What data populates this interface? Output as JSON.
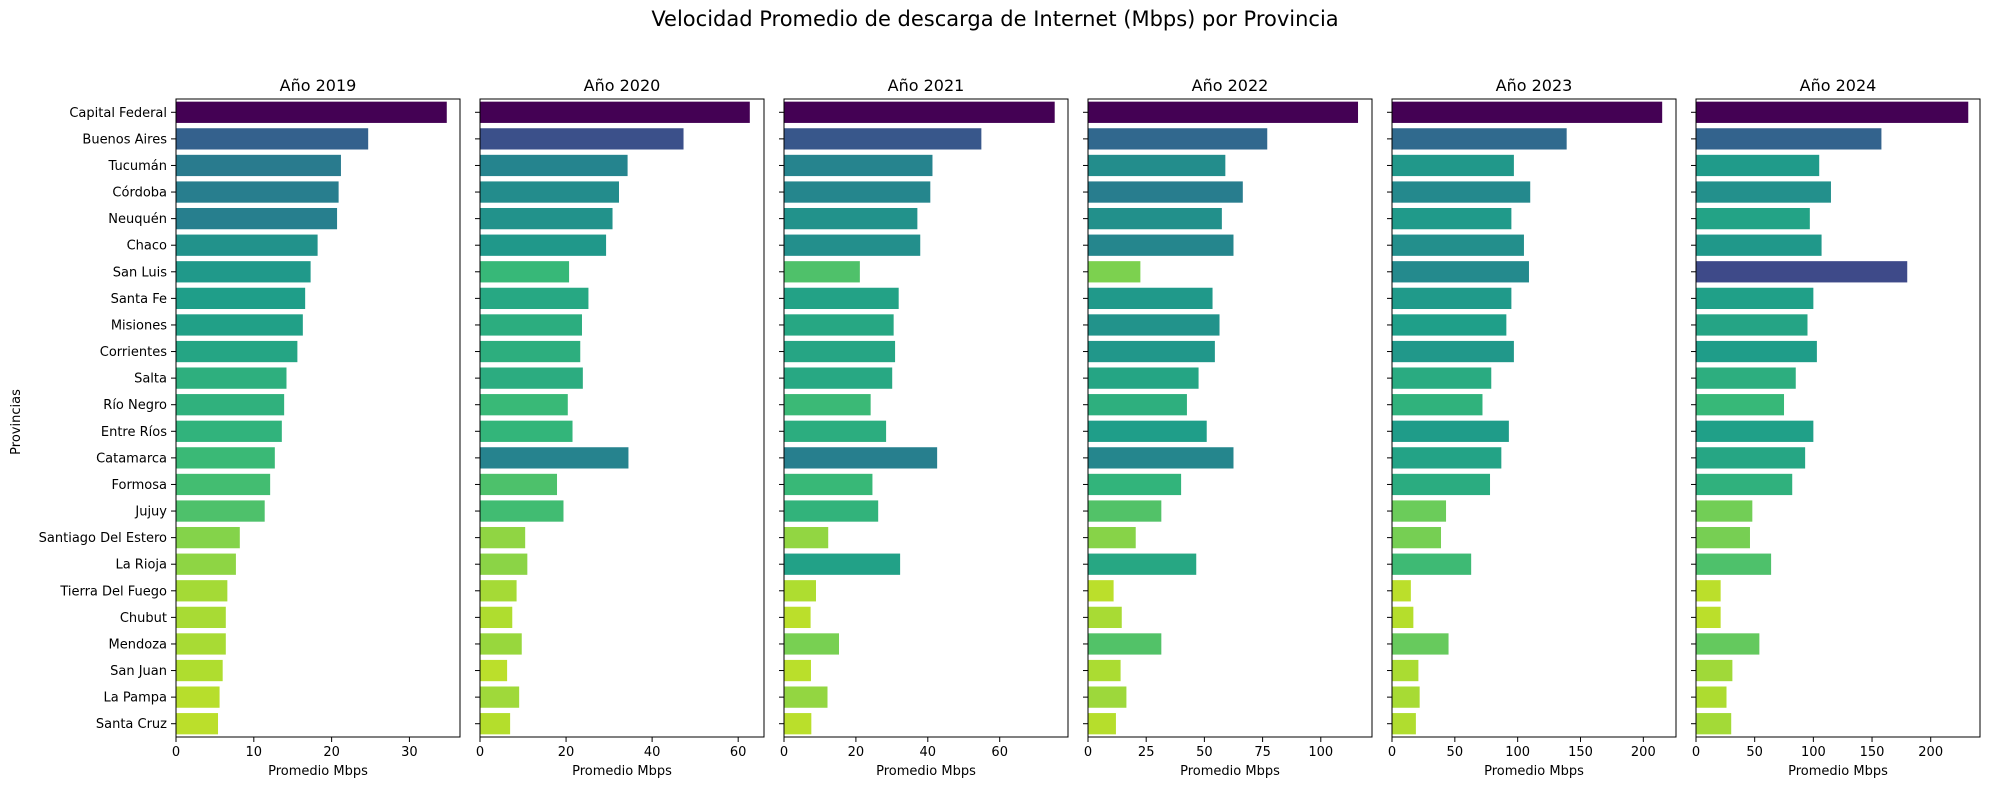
{
  "chart_data": {
    "type": "bar",
    "orientation": "horizontal",
    "title": "Velocidad Promedio de descarga de Internet (Mbps) por Provincia",
    "ylabel": "Provincias",
    "xlabel": "Promedio Mbps",
    "categories": [
      "Capital Federal",
      "Buenos Aires",
      "Tucumán",
      "Córdoba",
      "Neuquén",
      "Chaco",
      "San Luis",
      "Santa Fe",
      "Misiones",
      "Corrientes",
      "Salta",
      "Río Negro",
      "Entre Ríos",
      "Catamarca",
      "Formosa",
      "Jujuy",
      "Santiago Del Estero",
      "La Rioja",
      "Tierra Del Fuego",
      "Chubut",
      "Mendoza",
      "San Juan",
      "La Pampa",
      "Santa Cruz"
    ],
    "colormap": "viridis",
    "panels": [
      {
        "title": "Año 2019",
        "xlim": [
          0,
          36.5
        ],
        "xticks": [
          0,
          10,
          20,
          30
        ],
        "values": [
          34.8,
          24.7,
          21.2,
          20.9,
          20.7,
          18.2,
          17.3,
          16.6,
          16.3,
          15.6,
          14.2,
          13.9,
          13.6,
          12.7,
          12.1,
          11.4,
          8.2,
          7.7,
          6.6,
          6.4,
          6.4,
          6.0,
          5.6,
          5.4
        ]
      },
      {
        "title": "Año 2020",
        "xlim": [
          0,
          66
        ],
        "xticks": [
          0,
          20,
          40,
          60
        ],
        "values": [
          62.7,
          47.3,
          34.3,
          32.3,
          30.8,
          29.3,
          20.7,
          25.2,
          23.7,
          23.3,
          23.9,
          20.4,
          21.5,
          34.5,
          17.9,
          19.4,
          10.5,
          11.0,
          8.5,
          7.5,
          9.7,
          6.3,
          9.1,
          7.0
        ]
      },
      {
        "title": "Año 2021",
        "xlim": [
          0,
          79
        ],
        "xticks": [
          0,
          20,
          40,
          60
        ],
        "values": [
          75.3,
          54.9,
          41.3,
          40.7,
          37.1,
          37.9,
          21.1,
          31.9,
          30.5,
          30.9,
          30.1,
          24.1,
          28.4,
          42.6,
          24.6,
          26.2,
          12.3,
          32.3,
          8.9,
          7.4,
          15.3,
          7.5,
          12.1,
          7.6
        ]
      },
      {
        "title": "Año 2022",
        "xlim": [
          0,
          122
        ],
        "xticks": [
          0,
          25,
          50,
          75,
          100
        ],
        "values": [
          116.0,
          77.0,
          59.0,
          66.5,
          57.5,
          62.5,
          22.5,
          53.5,
          56.5,
          54.5,
          47.5,
          42.5,
          51.0,
          62.5,
          40.0,
          31.5,
          20.5,
          46.5,
          11.0,
          14.5,
          31.5,
          14.0,
          16.5,
          12.0
        ]
      },
      {
        "title": "Año 2023",
        "xlim": [
          0,
          226
        ],
        "xticks": [
          0,
          50,
          100,
          150,
          200
        ],
        "values": [
          215.0,
          139.0,
          97.0,
          110.0,
          95.0,
          105.0,
          109.0,
          95.0,
          91.0,
          97.0,
          79.0,
          72.0,
          93.0,
          87.0,
          78.0,
          43.0,
          39.0,
          63.0,
          15.0,
          17.0,
          45.0,
          21.0,
          22.0,
          19.0
        ]
      },
      {
        "title": "Año 2024",
        "xlim": [
          0,
          242
        ],
        "xticks": [
          0,
          50,
          100,
          150,
          200
        ],
        "values": [
          232.0,
          158.0,
          105.0,
          115.0,
          97.0,
          107.0,
          180.0,
          100.0,
          95.0,
          103.0,
          85.0,
          75.0,
          100.0,
          93.0,
          82.0,
          48.0,
          46.0,
          64.0,
          21.0,
          21.0,
          54.0,
          31.0,
          26.0,
          30.0
        ]
      }
    ]
  }
}
